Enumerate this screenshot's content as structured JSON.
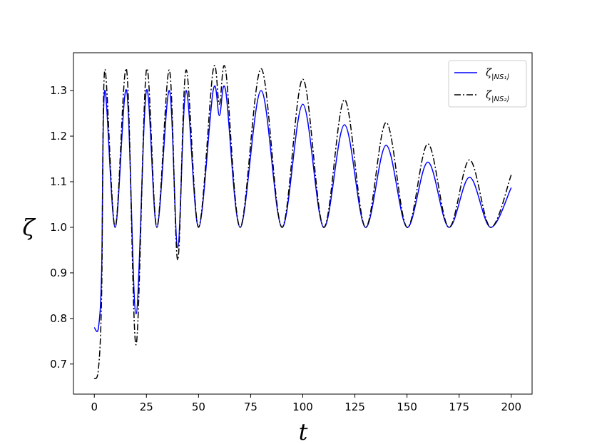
{
  "chart_data": {
    "type": "line",
    "xlabel": "t",
    "ylabel": "ζ",
    "x": [
      0,
      2,
      3.5,
      5,
      10,
      15.5,
      20,
      25,
      30,
      36,
      40,
      44,
      50,
      57,
      60,
      63,
      70,
      80,
      90,
      100,
      110,
      120,
      130,
      140,
      150,
      160,
      170,
      180,
      190,
      200
    ],
    "series": [
      {
        "name": "ζ|NS₁⟩",
        "color": "#0000ff",
        "style": "solid",
        "values": [
          0.78,
          0.78,
          0.9,
          1.3,
          1.0,
          1.3,
          0.81,
          1.3,
          1.0,
          1.3,
          0.955,
          1.3,
          1.0,
          1.3,
          1.245,
          1.3,
          1.0,
          1.3,
          1.0,
          1.27,
          1.0,
          1.225,
          1.0,
          1.18,
          1.0,
          1.143,
          1.0,
          1.11,
          1.0,
          1.087
        ]
      },
      {
        "name": "ζ|NS₂⟩",
        "color": "#000000",
        "style": "dashdot",
        "values": [
          0.667,
          0.69,
          0.85,
          1.345,
          1.0,
          1.345,
          0.742,
          1.345,
          1.0,
          1.345,
          0.928,
          1.345,
          1.0,
          1.345,
          1.27,
          1.345,
          1.0,
          1.348,
          1.0,
          1.325,
          1.0,
          1.28,
          1.0,
          1.23,
          1.0,
          1.183,
          1.0,
          1.148,
          1.0,
          1.115
        ]
      }
    ],
    "xlim": [
      -10,
      210
    ],
    "xticks": [
      0,
      25,
      50,
      75,
      100,
      125,
      150,
      175,
      200
    ],
    "ylim": [
      0.634,
      1.383
    ],
    "yticks": [
      0.7,
      0.8,
      0.9,
      {
        "value": 1,
        "label": "1.0"
      },
      1.1,
      1.2,
      1.3
    ],
    "grid": false,
    "legend": "upper right"
  }
}
